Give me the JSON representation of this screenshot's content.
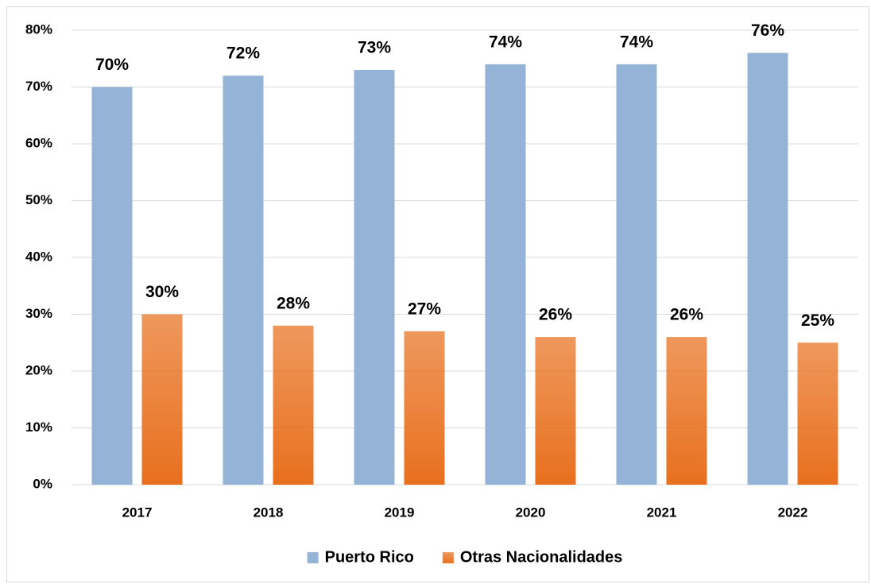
{
  "chart_data": {
    "type": "bar",
    "categories": [
      "2017",
      "2018",
      "2019",
      "2020",
      "2021",
      "2022"
    ],
    "series": [
      {
        "name": "Puerto Rico",
        "color": "#95b3d7",
        "values": [
          70,
          72,
          73,
          74,
          74,
          76
        ],
        "value_labels": [
          "70%",
          "72%",
          "73%",
          "74%",
          "74%",
          "76%"
        ]
      },
      {
        "name": "Otras Nacionalidades",
        "color": "#e8701e",
        "gradient": true,
        "values": [
          30,
          28,
          27,
          26,
          26,
          25
        ],
        "value_labels": [
          "30%",
          "28%",
          "27%",
          "26%",
          "26%",
          "25%"
        ]
      }
    ],
    "ylim": [
      0,
      80
    ],
    "yticks": [
      {
        "value": 0,
        "label": "0%"
      },
      {
        "value": 10,
        "label": "10%"
      },
      {
        "value": 20,
        "label": "20%"
      },
      {
        "value": 30,
        "label": "30%"
      },
      {
        "value": 40,
        "label": "40%"
      },
      {
        "value": 50,
        "label": "50%"
      },
      {
        "value": 60,
        "label": "60%"
      },
      {
        "value": 70,
        "label": "70%"
      },
      {
        "value": 80,
        "label": "80%"
      }
    ],
    "grid": true,
    "legend": "bottom"
  }
}
